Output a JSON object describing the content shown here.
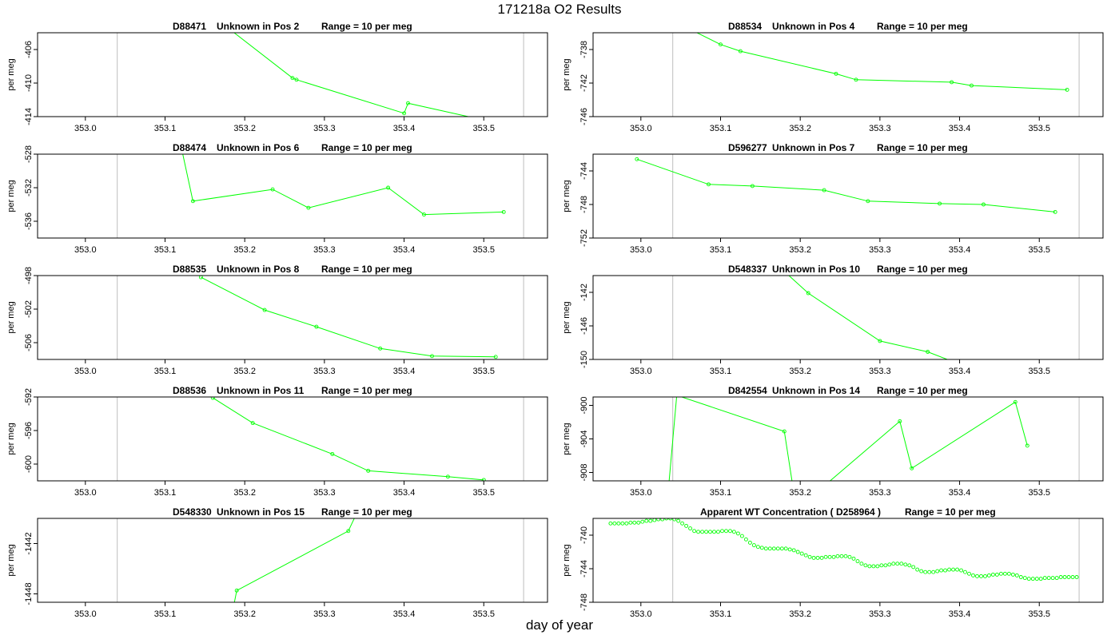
{
  "title": "171218a  O2 Results",
  "xlabel": "day of year",
  "colors": {
    "series": "#00ff00",
    "frame": "#000000",
    "marker": "#bdbdbd"
  },
  "chart_data": [
    {
      "type": "line",
      "sample": "D88471",
      "position": "Unknown in Pos 2",
      "range": "Range = 10 per meg",
      "xlim": [
        352.94,
        353.58
      ],
      "ylim": [
        -414,
        -404
      ],
      "yticks": [
        -406,
        -410,
        -414
      ],
      "xticks": [
        353.0,
        353.1,
        353.2,
        353.3,
        353.4,
        353.5
      ],
      "ylabel": "per meg",
      "markers": [
        353.04,
        353.55
      ],
      "x": [
        353.18,
        353.26,
        353.265,
        353.4,
        353.405,
        353.49
      ],
      "y": [
        -403.5,
        -409.4,
        -409.6,
        -413.6,
        -412.4,
        -414.2
      ]
    },
    {
      "type": "line",
      "sample": "D88534",
      "position": "Unknown in Pos 4",
      "range": "Range = 10 per meg",
      "xlim": [
        352.94,
        353.58
      ],
      "ylim": [
        -746,
        -736
      ],
      "yticks": [
        -738,
        -742,
        -746
      ],
      "xticks": [
        353.0,
        353.1,
        353.2,
        353.3,
        353.4,
        353.5
      ],
      "ylabel": "per meg",
      "markers": [
        353.04,
        353.55
      ],
      "x": [
        353.06,
        353.1,
        353.125,
        353.245,
        353.27,
        353.39,
        353.415,
        353.535
      ],
      "y": [
        -735.5,
        -737.4,
        -738.2,
        -740.9,
        -741.6,
        -741.9,
        -742.3,
        -742.8
      ]
    },
    {
      "type": "line",
      "sample": "D88474",
      "position": "Unknown in Pos 6",
      "range": "Range = 10 per meg",
      "xlim": [
        352.94,
        353.58
      ],
      "ylim": [
        -538,
        -528
      ],
      "yticks": [
        -528,
        -532,
        -536
      ],
      "xticks": [
        353.0,
        353.1,
        353.2,
        353.3,
        353.4,
        353.5
      ],
      "ylabel": "per meg",
      "markers": [
        353.04,
        353.55
      ],
      "x": [
        353.12,
        353.135,
        353.235,
        353.28,
        353.38,
        353.425,
        353.525
      ],
      "y": [
        -527.0,
        -533.6,
        -532.2,
        -534.4,
        -532.0,
        -535.2,
        -534.9
      ]
    },
    {
      "type": "line",
      "sample": "D596277",
      "position": "Unknown in Pos 7",
      "range": "Range = 10 per meg",
      "xlim": [
        352.94,
        353.58
      ],
      "ylim": [
        -752,
        -742
      ],
      "yticks": [
        -744,
        -748,
        -752
      ],
      "xticks": [
        353.0,
        353.1,
        353.2,
        353.3,
        353.4,
        353.5
      ],
      "ylabel": "per meg",
      "markers": [
        353.04,
        353.55
      ],
      "x": [
        352.995,
        353.085,
        353.14,
        353.23,
        353.285,
        353.375,
        353.43,
        353.52
      ],
      "y": [
        -742.6,
        -745.6,
        -745.8,
        -746.3,
        -747.6,
        -747.9,
        -748.0,
        -748.9
      ]
    },
    {
      "type": "line",
      "sample": "D88535",
      "position": "Unknown in Pos 8",
      "range": "Range = 10 per meg",
      "xlim": [
        352.94,
        353.58
      ],
      "ylim": [
        -508,
        -498
      ],
      "yticks": [
        -498,
        -502,
        -506
      ],
      "xticks": [
        353.0,
        353.1,
        353.2,
        353.3,
        353.4,
        353.5
      ],
      "ylabel": "per meg",
      "markers": [
        353.04,
        353.55
      ],
      "x": [
        353.145,
        353.225,
        353.29,
        353.37,
        353.435,
        353.515
      ],
      "y": [
        -498.2,
        -502.1,
        -504.1,
        -506.7,
        -507.6,
        -507.7
      ]
    },
    {
      "type": "line",
      "sample": "D548337",
      "position": "Unknown in Pos 10",
      "range": "Range = 10 per meg",
      "xlim": [
        352.94,
        353.58
      ],
      "ylim": [
        -150,
        -140
      ],
      "yticks": [
        -142,
        -146,
        -150
      ],
      "xticks": [
        353.0,
        353.1,
        353.2,
        353.3,
        353.4,
        353.5
      ],
      "ylabel": "per meg",
      "markers": [
        353.04,
        353.55
      ],
      "x": [
        353.18,
        353.21,
        353.3,
        353.36,
        353.39
      ],
      "y": [
        -139.5,
        -142.1,
        -147.8,
        -149.1,
        -150.2
      ]
    },
    {
      "type": "line",
      "sample": "D88536",
      "position": "Unknown in Pos 11",
      "range": "Range = 10 per meg",
      "xlim": [
        352.94,
        353.58
      ],
      "ylim": [
        -602,
        -592
      ],
      "yticks": [
        -592,
        -596,
        -600
      ],
      "xticks": [
        353.0,
        353.1,
        353.2,
        353.3,
        353.4,
        353.5
      ],
      "ylabel": "per meg",
      "markers": [
        353.04,
        353.55
      ],
      "x": [
        353.16,
        353.21,
        353.31,
        353.355,
        353.455,
        353.5
      ],
      "y": [
        -592.1,
        -595.1,
        -598.8,
        -600.8,
        -601.5,
        -601.9
      ]
    },
    {
      "type": "line",
      "sample": "D842554",
      "position": "Unknown in Pos 14",
      "range": "Range = 10 per meg",
      "xlim": [
        352.94,
        353.58
      ],
      "ylim": [
        -909,
        -899
      ],
      "yticks": [
        -900,
        -904,
        -908
      ],
      "xticks": [
        353.0,
        353.1,
        353.2,
        353.3,
        353.4,
        353.5
      ],
      "ylabel": "per meg",
      "markers": [
        353.04,
        353.55
      ],
      "x": [
        353.035,
        353.045,
        353.18,
        353.19,
        353.235,
        353.325,
        353.34,
        353.47,
        353.485
      ],
      "y": [
        -909.5,
        -898.8,
        -903.1,
        -909.2,
        -909.2,
        -901.9,
        -907.5,
        -899.6,
        -904.8
      ]
    },
    {
      "type": "line",
      "sample": "D548330",
      "position": "Unknown in Pos 15",
      "range": "Range = 10 per meg",
      "xlim": [
        352.94,
        353.58
      ],
      "ylim": [
        -1449,
        -1439
      ],
      "yticks": [
        -1442,
        -1448
      ],
      "xticks": [
        353.0,
        353.1,
        353.2,
        353.3,
        353.4,
        353.5
      ],
      "ylabel": "per meg",
      "markers": [
        353.04,
        353.55
      ],
      "x": [
        353.185,
        353.19,
        353.33,
        353.34
      ],
      "y": [
        -1450,
        -1447.6,
        -1440.5,
        -1438.5
      ]
    },
    {
      "type": "scatter",
      "title": "Apparent WT Concentration ( D258964 )",
      "range": "Range = 10 per meg",
      "xlim": [
        352.94,
        353.58
      ],
      "ylim": [
        -748,
        -738
      ],
      "yticks": [
        -740,
        -744,
        -748
      ],
      "xticks": [
        353.0,
        353.1,
        353.2,
        353.3,
        353.4,
        353.5
      ],
      "ylabel": "per meg",
      "markers": [
        353.04,
        353.55
      ],
      "connected": false,
      "x_start": 352.962,
      "x_step": 0.005,
      "y": [
        -738.6,
        -738.6,
        -738.6,
        -738.6,
        -738.6,
        -738.5,
        -738.5,
        -738.5,
        -738.4,
        -738.3,
        -738.3,
        -738.2,
        -738.1,
        -738.1,
        -738.0,
        -738.0,
        -738.1,
        -738.3,
        -738.6,
        -738.9,
        -739.2,
        -739.5,
        -739.6,
        -739.6,
        -739.6,
        -739.6,
        -739.6,
        -739.6,
        -739.5,
        -739.5,
        -739.5,
        -739.6,
        -739.8,
        -740.1,
        -740.5,
        -740.9,
        -741.2,
        -741.4,
        -741.5,
        -741.6,
        -741.6,
        -741.6,
        -741.6,
        -741.6,
        -741.6,
        -741.7,
        -741.8,
        -742.0,
        -742.2,
        -742.4,
        -742.6,
        -742.7,
        -742.7,
        -742.7,
        -742.6,
        -742.6,
        -742.6,
        -742.5,
        -742.5,
        -742.5,
        -742.6,
        -742.8,
        -743.1,
        -743.4,
        -743.6,
        -743.7,
        -743.7,
        -743.7,
        -743.6,
        -743.6,
        -743.5,
        -743.4,
        -743.4,
        -743.4,
        -743.5,
        -743.6,
        -743.8,
        -744.1,
        -744.3,
        -744.4,
        -744.4,
        -744.4,
        -744.3,
        -744.2,
        -744.2,
        -744.1,
        -744.1,
        -744.1,
        -744.2,
        -744.4,
        -744.6,
        -744.8,
        -744.9,
        -744.9,
        -744.9,
        -744.8,
        -744.7,
        -744.7,
        -744.6,
        -744.6,
        -744.6,
        -744.7,
        -744.8,
        -745.0,
        -745.1,
        -745.2,
        -745.2,
        -745.2,
        -745.2,
        -745.1,
        -745.1,
        -745.1,
        -745.1,
        -745.0,
        -745.0,
        -745.0,
        -745.0,
        -745.0
      ]
    }
  ]
}
